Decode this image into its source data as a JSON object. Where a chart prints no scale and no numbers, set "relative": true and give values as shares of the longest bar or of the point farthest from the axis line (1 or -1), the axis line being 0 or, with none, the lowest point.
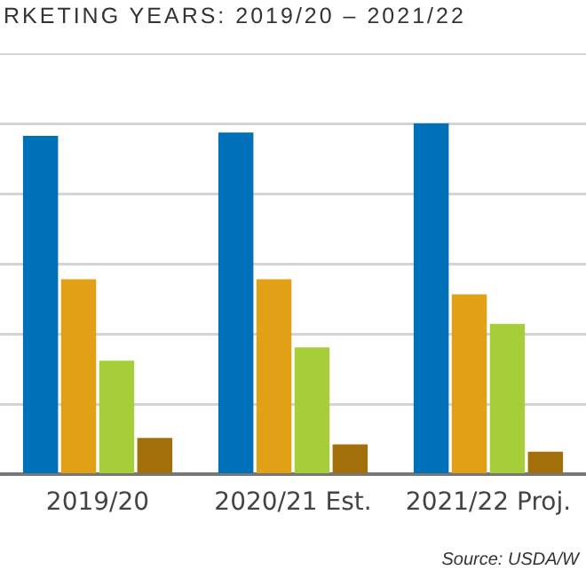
{
  "chart_data": {
    "type": "bar",
    "title": "RKETING YEARS: 2019/20 – 2021/22",
    "categories": [
      "2019/20",
      "2020/21 Est.",
      "2021/22 Proj."
    ],
    "relative": true,
    "grid": "y",
    "series": [
      {
        "color": "#0070b8",
        "values": [
          0.965,
          0.974,
          1
        ]
      },
      {
        "color": "#e2a016",
        "values": [
          0.556,
          0.556,
          0.513
        ]
      },
      {
        "color": "#a6ce39",
        "values": [
          0.324,
          0.362,
          0.429
        ]
      },
      {
        "color": "#a36f0a",
        "values": [
          0.104,
          0.086,
          0.065
        ]
      }
    ],
    "annotations": [
      "Source: USDA/W"
    ]
  }
}
